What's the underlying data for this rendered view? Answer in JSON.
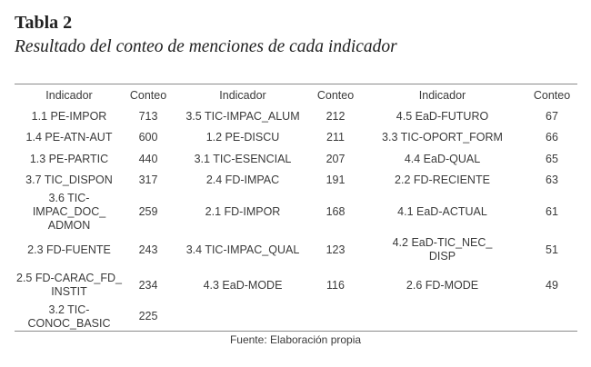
{
  "title": "Tabla 2",
  "subtitle": "Resultado del conteo de menciones de cada indicador",
  "headers": [
    "Indicador",
    "Conteo",
    "Indicador",
    "Conteo",
    "Indicador",
    "Conteo"
  ],
  "rows": [
    [
      "1.1 PE-IMPOR",
      "713",
      "3.5 TIC-IMPAC_ALUM",
      "212",
      "4.5 EaD-FUTURO",
      "67"
    ],
    [
      "1.4 PE-ATN-AUT",
      "600",
      "1.2 PE-DISCU",
      "211",
      "3.3 TIC-OPORT_FORM",
      "66"
    ],
    [
      "1.3 PE-PARTIC",
      "440",
      "3.1 TIC-ESENCIAL",
      "207",
      "4.4 EaD-QUAL",
      "65"
    ],
    [
      "3.7 TIC_DISPON",
      "317",
      "2.4 FD-IMPAC",
      "191",
      "2.2 FD-RECIENTE",
      "63"
    ],
    [
      "3.6 TIC-IMPAC_DOC_\nADMON",
      "259",
      "2.1 FD-IMPOR",
      "168",
      "4.1 EaD-ACTUAL",
      "61"
    ],
    [
      "2.3 FD-FUENTE",
      "243",
      "3.4 TIC-IMPAC_QUAL",
      "123",
      "4.2 EaD-TIC_NEC_\nDISP",
      "51"
    ],
    [
      "2.5 FD-CARAC_FD_\nINSTIT",
      "234",
      "4.3 EaD-MODE",
      "116",
      "2.6 FD-MODE",
      "49"
    ],
    [
      "3.2 TIC-CONOC_BASIC",
      "225",
      "",
      "",
      "",
      ""
    ]
  ],
  "source": "Fuente: Elaboración propia"
}
